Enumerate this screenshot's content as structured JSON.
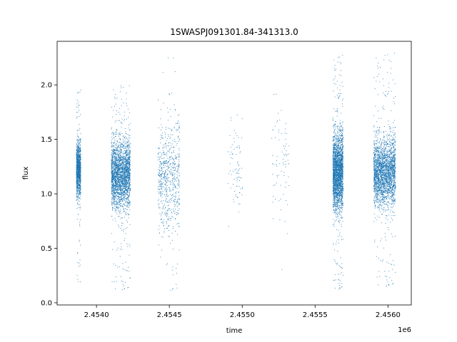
{
  "chart_data": {
    "type": "scatter",
    "title": "1SWASPJ091301.84-341313.0",
    "xlabel": "time",
    "ylabel": "flux",
    "x_offset_label": "1e6",
    "x_tick_values": [
      2.454,
      2.4545,
      2.455,
      2.4555,
      2.456
    ],
    "x_tick_labels": [
      "2.4540",
      "2.4545",
      "2.4550",
      "2.4555",
      "2.4560"
    ],
    "y_tick_values": [
      0.0,
      0.5,
      1.0,
      1.5,
      2.0
    ],
    "y_tick_labels": [
      "0.0",
      "0.5",
      "1.0",
      "1.5",
      "2.0"
    ],
    "xlim": [
      2.45373,
      2.45616
    ],
    "ylim": [
      -0.02,
      2.4
    ],
    "marker_color": "#1f77b4",
    "grid": false,
    "legend": "none",
    "clusters": [
      {
        "x_start": 2.45386,
        "x_end": 2.45389,
        "y_center": 1.22,
        "y_spread": 0.12,
        "density": "high",
        "y_min": 0.19,
        "y_max": 1.98
      },
      {
        "x_start": 2.4541,
        "x_end": 2.45423,
        "y_center": 1.18,
        "y_spread": 0.15,
        "density": "very-high",
        "y_min": 0.1,
        "y_max": 2.0
      },
      {
        "x_start": 2.45442,
        "x_end": 2.45457,
        "y_center": 1.15,
        "y_spread": 0.25,
        "density": "medium",
        "y_min": 0.09,
        "y_max": 2.32
      },
      {
        "x_start": 2.4549,
        "x_end": 2.455,
        "y_center": 1.25,
        "y_spread": 0.2,
        "density": "sparse",
        "y_min": 0.65,
        "y_max": 1.75
      },
      {
        "x_start": 2.4552,
        "x_end": 2.45532,
        "y_center": 1.3,
        "y_spread": 0.25,
        "density": "sparse",
        "y_min": 0.29,
        "y_max": 1.92
      },
      {
        "x_start": 2.45562,
        "x_end": 2.45569,
        "y_center": 1.2,
        "y_spread": 0.17,
        "density": "very-high",
        "y_min": 0.1,
        "y_max": 2.28
      },
      {
        "x_start": 2.4559,
        "x_end": 2.45605,
        "y_center": 1.2,
        "y_spread": 0.15,
        "density": "very-high",
        "y_min": 0.13,
        "y_max": 2.3
      }
    ]
  }
}
